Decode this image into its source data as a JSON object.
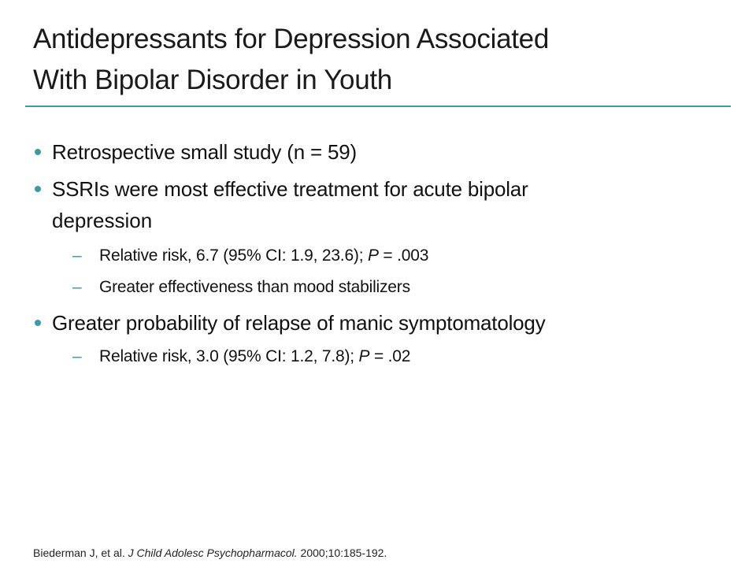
{
  "slide": {
    "title_line1": "Antidepressants for Depression Associated",
    "title_line2": "With Bipolar Disorder in Youth",
    "accent_color": "#3a9aa6",
    "bullets": [
      {
        "text": "Retrospective small study (n = 59)"
      },
      {
        "text": "SSRIs were most effective treatment for acute bipolar",
        "text_cont": "depression",
        "subs": [
          {
            "pre": "Relative risk, 6.7 (95% CI: 1.9, 23.6); ",
            "italic": "P",
            "post": " = .003"
          },
          {
            "pre": "Greater effectiveness than mood stabilizers"
          }
        ]
      },
      {
        "text": "Greater probability of relapse of manic symptomatology",
        "subs": [
          {
            "pre": "Relative risk, 3.0 (95% CI: 1.2, 7.8); ",
            "italic": "P",
            "post": " = .02"
          }
        ]
      }
    ],
    "dash": "–",
    "reference": {
      "pre": "Biederman J, et al. ",
      "journal": "J Child Adolesc Psychopharmacol.",
      "post": " 2000;10:185-192."
    }
  }
}
